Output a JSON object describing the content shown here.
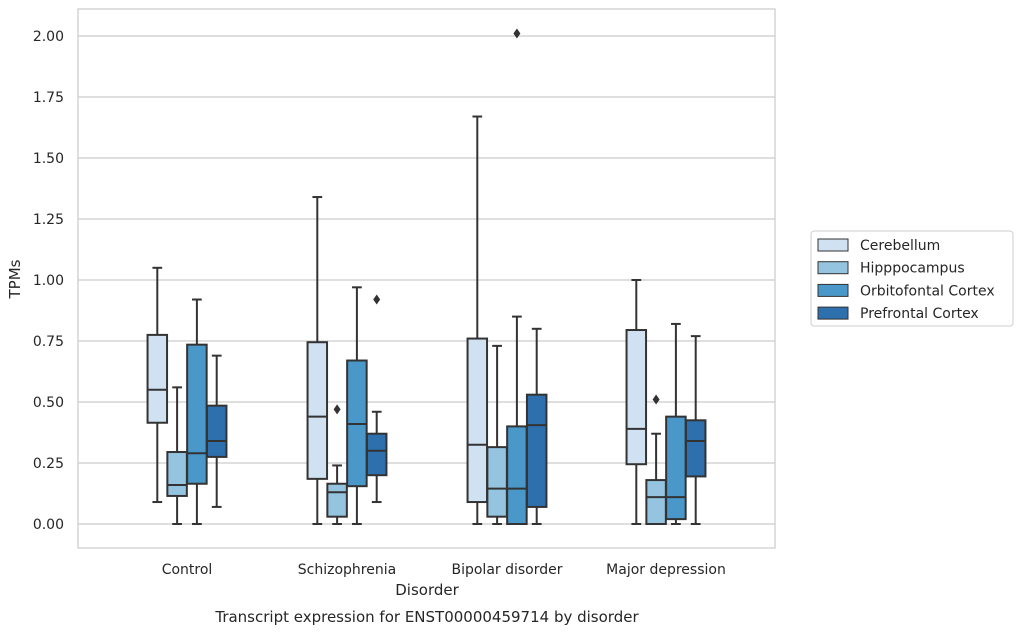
{
  "chart_data": {
    "type": "box",
    "title": "Transcript expression for ENST00000459714 by disorder",
    "xlabel": "Disorder",
    "ylabel": "TPMs",
    "ylim": [
      -0.1,
      2.1
    ],
    "yticks": [
      0.0,
      0.25,
      0.5,
      0.75,
      1.0,
      1.25,
      1.5,
      1.75,
      2.0
    ],
    "ytick_labels": [
      "0.00",
      "0.25",
      "0.50",
      "0.75",
      "1.00",
      "1.25",
      "1.50",
      "1.75",
      "2.00"
    ],
    "grid": true,
    "legend_position": "right",
    "categories": [
      "Control",
      "Schizophrenia",
      "Bipolar disorder",
      "Major depression"
    ],
    "series": [
      {
        "name": "Cerebellum",
        "color": "#d0e1f2",
        "boxes": [
          {
            "whislo": 0.09,
            "q1": 0.415,
            "med": 0.55,
            "q3": 0.775,
            "whishi": 1.05,
            "fliers": []
          },
          {
            "whislo": 0.0,
            "q1": 0.185,
            "med": 0.44,
            "q3": 0.745,
            "whishi": 1.34,
            "fliers": []
          },
          {
            "whislo": 0.0,
            "q1": 0.09,
            "med": 0.325,
            "q3": 0.76,
            "whishi": 1.67,
            "fliers": []
          },
          {
            "whislo": 0.0,
            "q1": 0.245,
            "med": 0.39,
            "q3": 0.795,
            "whishi": 1.0,
            "fliers": []
          }
        ]
      },
      {
        "name": "Hipppocampus",
        "color": "#94c4df",
        "boxes": [
          {
            "whislo": 0.0,
            "q1": 0.115,
            "med": 0.16,
            "q3": 0.295,
            "whishi": 0.56,
            "fliers": []
          },
          {
            "whislo": 0.0,
            "q1": 0.03,
            "med": 0.13,
            "q3": 0.165,
            "whishi": 0.24,
            "fliers": [
              0.47
            ]
          },
          {
            "whislo": 0.0,
            "q1": 0.03,
            "med": 0.145,
            "q3": 0.315,
            "whishi": 0.73,
            "fliers": []
          },
          {
            "whislo": 0.0,
            "q1": 0.0,
            "med": 0.11,
            "q3": 0.18,
            "whishi": 0.37,
            "fliers": [
              0.51
            ]
          }
        ]
      },
      {
        "name": "Orbitofontal Cortex",
        "color": "#4a98c9",
        "boxes": [
          {
            "whislo": 0.0,
            "q1": 0.165,
            "med": 0.29,
            "q3": 0.735,
            "whishi": 0.92,
            "fliers": []
          },
          {
            "whislo": 0.0,
            "q1": 0.155,
            "med": 0.41,
            "q3": 0.67,
            "whishi": 0.97,
            "fliers": []
          },
          {
            "whislo": 0.0,
            "q1": 0.0,
            "med": 0.145,
            "q3": 0.4,
            "whishi": 0.85,
            "fliers": [
              2.01
            ]
          },
          {
            "whislo": 0.0,
            "q1": 0.02,
            "med": 0.11,
            "q3": 0.44,
            "whishi": 0.82,
            "fliers": []
          }
        ]
      },
      {
        "name": "Prefrontal Cortex",
        "color": "#2e6fae",
        "boxes": [
          {
            "whislo": 0.07,
            "q1": 0.275,
            "med": 0.34,
            "q3": 0.485,
            "whishi": 0.69,
            "fliers": []
          },
          {
            "whislo": 0.09,
            "q1": 0.2,
            "med": 0.3,
            "q3": 0.37,
            "whishi": 0.46,
            "fliers": [
              0.92
            ]
          },
          {
            "whislo": 0.0,
            "q1": 0.07,
            "med": 0.405,
            "q3": 0.53,
            "whishi": 0.8,
            "fliers": []
          },
          {
            "whislo": 0.0,
            "q1": 0.195,
            "med": 0.34,
            "q3": 0.425,
            "whishi": 0.77,
            "fliers": []
          }
        ]
      }
    ]
  }
}
